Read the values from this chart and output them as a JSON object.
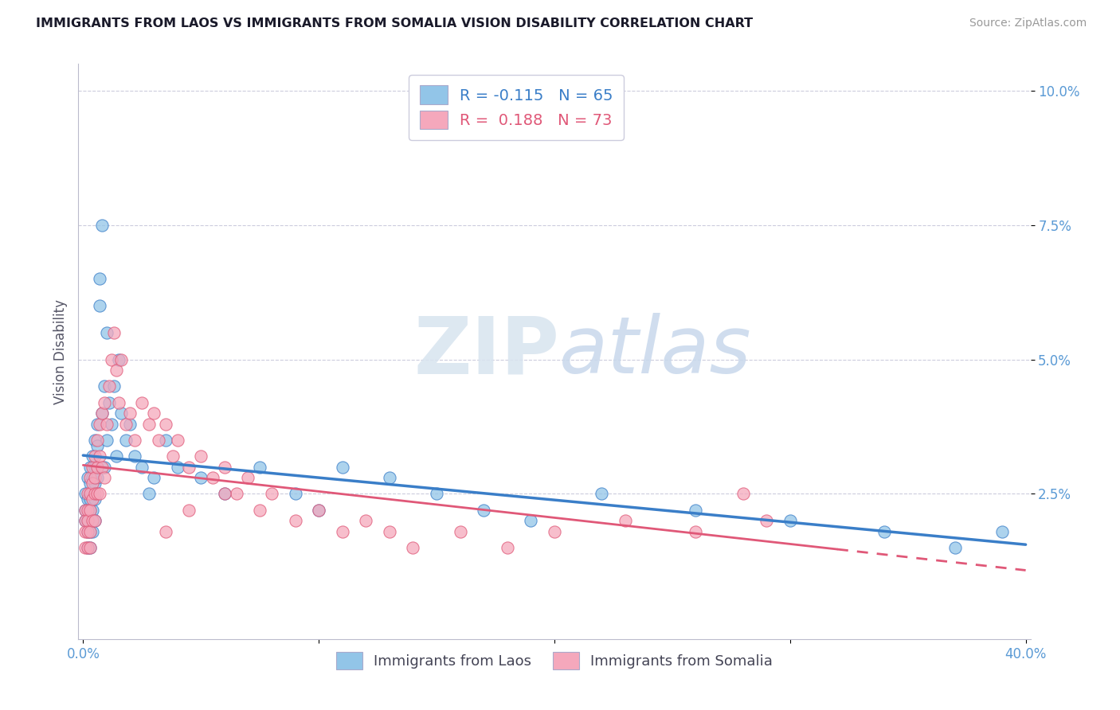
{
  "title": "IMMIGRANTS FROM LAOS VS IMMIGRANTS FROM SOMALIA VISION DISABILITY CORRELATION CHART",
  "source": "Source: ZipAtlas.com",
  "ylabel": "Vision Disability",
  "laos_R": -0.115,
  "laos_N": 65,
  "somalia_R": 0.188,
  "somalia_N": 73,
  "xlim": [
    -0.002,
    0.402
  ],
  "ylim": [
    -0.002,
    0.105
  ],
  "xtick_positions": [
    0.0,
    0.1,
    0.2,
    0.3,
    0.4
  ],
  "xtick_labels": [
    "0.0%",
    "",
    "",
    "",
    "40.0%"
  ],
  "ytick_positions": [
    0.025,
    0.05,
    0.075,
    0.1
  ],
  "ytick_labels": [
    "2.5%",
    "5.0%",
    "7.5%",
    "10.0%"
  ],
  "laos_color": "#92C5E8",
  "somalia_color": "#F5A8BC",
  "laos_line_color": "#3A7EC8",
  "somalia_line_color": "#E05878",
  "watermark_zip": "ZIP",
  "watermark_atlas": "atlas",
  "background_color": "#FFFFFF",
  "grid_color": "#CCCCDD",
  "laos_x": [
    0.001,
    0.001,
    0.001,
    0.002,
    0.002,
    0.002,
    0.002,
    0.002,
    0.003,
    0.003,
    0.003,
    0.003,
    0.003,
    0.003,
    0.004,
    0.004,
    0.004,
    0.004,
    0.004,
    0.005,
    0.005,
    0.005,
    0.005,
    0.005,
    0.006,
    0.006,
    0.006,
    0.007,
    0.007,
    0.008,
    0.008,
    0.009,
    0.009,
    0.01,
    0.01,
    0.011,
    0.012,
    0.013,
    0.014,
    0.015,
    0.016,
    0.018,
    0.02,
    0.022,
    0.025,
    0.028,
    0.03,
    0.035,
    0.04,
    0.05,
    0.06,
    0.075,
    0.09,
    0.1,
    0.11,
    0.13,
    0.15,
    0.17,
    0.19,
    0.22,
    0.26,
    0.3,
    0.34,
    0.37,
    0.39
  ],
  "laos_y": [
    0.025,
    0.022,
    0.02,
    0.028,
    0.024,
    0.02,
    0.018,
    0.015,
    0.03,
    0.027,
    0.024,
    0.022,
    0.018,
    0.015,
    0.032,
    0.028,
    0.025,
    0.022,
    0.018,
    0.035,
    0.03,
    0.027,
    0.024,
    0.02,
    0.038,
    0.034,
    0.028,
    0.06,
    0.065,
    0.075,
    0.04,
    0.045,
    0.03,
    0.055,
    0.035,
    0.042,
    0.038,
    0.045,
    0.032,
    0.05,
    0.04,
    0.035,
    0.038,
    0.032,
    0.03,
    0.025,
    0.028,
    0.035,
    0.03,
    0.028,
    0.025,
    0.03,
    0.025,
    0.022,
    0.03,
    0.028,
    0.025,
    0.022,
    0.02,
    0.025,
    0.022,
    0.02,
    0.018,
    0.015,
    0.018
  ],
  "somalia_x": [
    0.001,
    0.001,
    0.001,
    0.001,
    0.002,
    0.002,
    0.002,
    0.002,
    0.002,
    0.003,
    0.003,
    0.003,
    0.003,
    0.003,
    0.004,
    0.004,
    0.004,
    0.004,
    0.005,
    0.005,
    0.005,
    0.005,
    0.006,
    0.006,
    0.006,
    0.007,
    0.007,
    0.007,
    0.008,
    0.008,
    0.009,
    0.009,
    0.01,
    0.011,
    0.012,
    0.013,
    0.014,
    0.015,
    0.016,
    0.018,
    0.02,
    0.022,
    0.025,
    0.028,
    0.03,
    0.032,
    0.035,
    0.038,
    0.04,
    0.045,
    0.05,
    0.055,
    0.06,
    0.065,
    0.07,
    0.075,
    0.08,
    0.09,
    0.1,
    0.11,
    0.12,
    0.13,
    0.14,
    0.16,
    0.18,
    0.2,
    0.23,
    0.26,
    0.29,
    0.06,
    0.045,
    0.035,
    0.28
  ],
  "somalia_y": [
    0.022,
    0.02,
    0.018,
    0.015,
    0.025,
    0.022,
    0.02,
    0.018,
    0.015,
    0.028,
    0.025,
    0.022,
    0.018,
    0.015,
    0.03,
    0.027,
    0.024,
    0.02,
    0.032,
    0.028,
    0.025,
    0.02,
    0.035,
    0.03,
    0.025,
    0.038,
    0.032,
    0.025,
    0.04,
    0.03,
    0.042,
    0.028,
    0.038,
    0.045,
    0.05,
    0.055,
    0.048,
    0.042,
    0.05,
    0.038,
    0.04,
    0.035,
    0.042,
    0.038,
    0.04,
    0.035,
    0.038,
    0.032,
    0.035,
    0.03,
    0.032,
    0.028,
    0.03,
    0.025,
    0.028,
    0.022,
    0.025,
    0.02,
    0.022,
    0.018,
    0.02,
    0.018,
    0.015,
    0.018,
    0.015,
    0.018,
    0.02,
    0.018,
    0.02,
    0.025,
    0.022,
    0.018,
    0.025
  ]
}
